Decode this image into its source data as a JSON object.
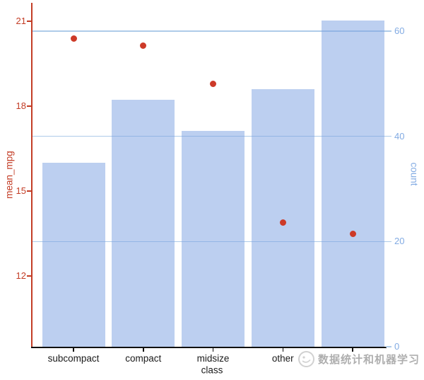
{
  "watermark": {
    "text": "数据统计和机器学习"
  },
  "colors": {
    "bar_fill": "rgba(121,159,225,0.5)",
    "point": "#cd3a28",
    "left_axis": "#c33d26",
    "right_axis": "#82abe3",
    "gridline": "#aecbe9",
    "bottom_axis": "#111111",
    "category_text": "#1a1a1a"
  },
  "chart_data": {
    "type": "bar",
    "subtype": "dual-axis: bars (count, right axis) + red points (mean_mpg, left axis)",
    "categories": [
      "subcompact",
      "compact",
      "midsize",
      "other",
      ""
    ],
    "series": [
      {
        "name": "count",
        "type": "bar",
        "axis": "right",
        "values": [
          35,
          47,
          41,
          49,
          62
        ]
      },
      {
        "name": "mean_mpg",
        "type": "scatter",
        "axis": "left",
        "values": [
          20.4,
          20.15,
          18.8,
          13.9,
          13.5
        ]
      }
    ],
    "xlabel": "class",
    "left_axis": {
      "label": "mean_mpg",
      "ticks": [
        21,
        18,
        15,
        12
      ],
      "ylim": [
        9.5,
        21.6
      ]
    },
    "right_axis": {
      "label": "count",
      "ticks": [
        60,
        40,
        20,
        0
      ],
      "gridline_values": [
        60,
        40,
        20
      ],
      "ylim": [
        0,
        65.2
      ]
    },
    "grid": "horizontal light-blue lines at right-axis values 20/40/60, drawn under translucent bars",
    "legend": "none"
  }
}
